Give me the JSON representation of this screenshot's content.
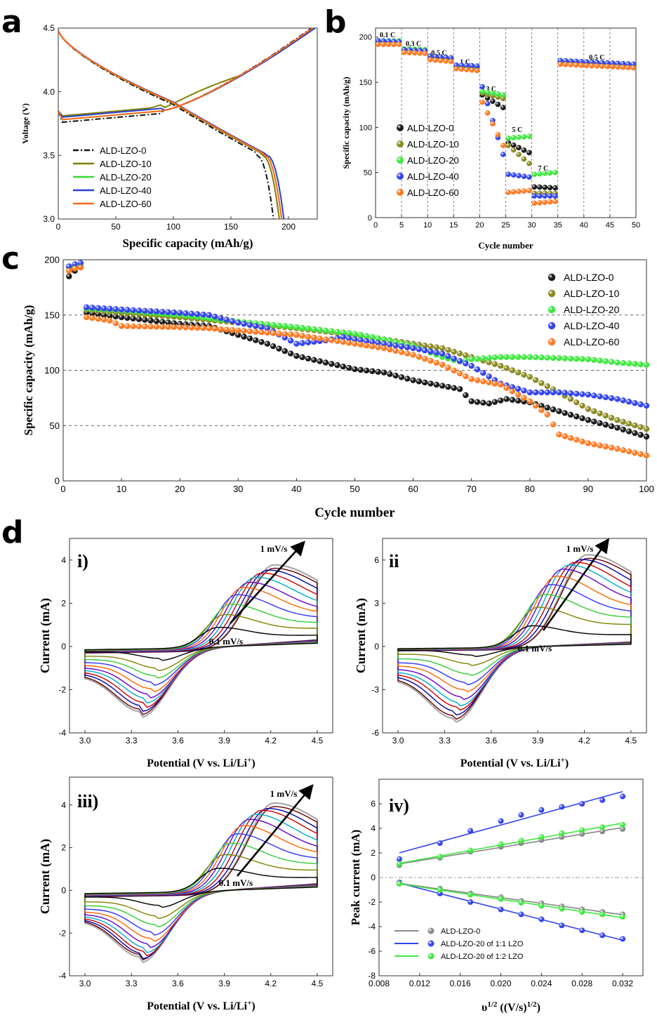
{
  "panel_labels": [
    "a",
    "b",
    "c",
    "d"
  ],
  "colors": {
    "ALD-LZO-0": "#111111",
    "ALD-LZO-10": "#808000",
    "ALD-LZO-20": "#33dd33",
    "ALD-LZO-40": "#2a3fd6",
    "ALD-LZO-60": "#ff6a1a",
    "dots": {
      "ALD-LZO-0": "#1a1a1a",
      "ALD-LZO-10": "#8a8a22",
      "ALD-LZO-20": "#3ee83e",
      "ALD-LZO-40": "#3344ee",
      "ALD-LZO-60": "#ff7a22"
    },
    "cv": [
      "#000000",
      "#808000",
      "#33cc33",
      "#3333ff",
      "#ff6600",
      "#6600cc",
      "#00aacc",
      "#cc0000",
      "#0000aa",
      "#660000",
      "#aaaaaa"
    ]
  },
  "chart_data": [
    {
      "id": "a",
      "type": "line",
      "xlabel": "Specific capacity (mAh/g)",
      "ylabel": "Voltage (V)",
      "xlim": [
        0,
        225
      ],
      "ylim": [
        3.0,
        4.5
      ],
      "xticks": [
        "0",
        "50",
        "100",
        "150",
        "200"
      ],
      "yticks": [
        "3.0",
        "3.5",
        "4.0",
        "4.5"
      ],
      "legend": [
        "ALD-LZO-0",
        "ALD-LZO-10",
        "ALD-LZO-20",
        "ALD-LZO-40",
        "ALD-LZO-60"
      ],
      "legend_position": "lower-left",
      "charge_end_capacity": [
        220,
        222,
        223,
        223,
        221
      ],
      "discharge_end_capacity": [
        187,
        192,
        194,
        196,
        194
      ]
    },
    {
      "id": "b",
      "type": "scatter",
      "xlabel": "Cycle number",
      "ylabel": "Specific capacity (mAh/g)",
      "xlim": [
        0,
        50
      ],
      "ylim": [
        0,
        210
      ],
      "xticks": [
        "0",
        "5",
        "10",
        "15",
        "20",
        "25",
        "30",
        "35",
        "40",
        "45",
        "50"
      ],
      "yticks": [
        "0",
        "50",
        "100",
        "150",
        "200"
      ],
      "rate_labels": [
        {
          "text": "0.1 C",
          "x": 2.3,
          "y": 200
        },
        {
          "text": "0.3 C",
          "x": 7.3,
          "y": 190
        },
        {
          "text": "0.5 C",
          "x": 12.2,
          "y": 180
        },
        {
          "text": "1 C",
          "x": 17.2,
          "y": 170
        },
        {
          "text": "3 C",
          "x": 22.2,
          "y": 140
        },
        {
          "text": "5 C",
          "x": 27.2,
          "y": 95
        },
        {
          "text": "7 C",
          "x": 32.2,
          "y": 52
        },
        {
          "text": "0.5 C",
          "x": 42.5,
          "y": 175
        }
      ],
      "legend": [
        "ALD-LZO-0",
        "ALD-LZO-10",
        "ALD-LZO-20",
        "ALD-LZO-40",
        "ALD-LZO-60"
      ],
      "legend_position": "lower-left",
      "series": [
        {
          "name": "ALD-LZO-0",
          "segments": [
            [
              195,
              195
            ],
            [
              186,
              185
            ],
            [
              178,
              176
            ],
            [
              167,
              166
            ],
            [
              136,
              122
            ],
            [
              83,
              72
            ],
            [
              34,
              33
            ],
            [
              173,
              169
            ]
          ]
        },
        {
          "name": "ALD-LZO-10",
          "segments": [
            [
              195,
              195
            ],
            [
              187,
              186
            ],
            [
              179,
              177
            ],
            [
              168,
              167
            ],
            [
              138,
              132
            ],
            [
              80,
              60
            ],
            [
              27,
              27
            ],
            [
              173,
              169
            ]
          ]
        },
        {
          "name": "ALD-LZO-20",
          "segments": [
            [
              196,
              196
            ],
            [
              187,
              186
            ],
            [
              179,
              177
            ],
            [
              168,
              167
            ],
            [
              140,
              136
            ],
            [
              88,
              90
            ],
            [
              48,
              50
            ],
            [
              174,
              170
            ]
          ]
        },
        {
          "name": "ALD-LZO-40",
          "segments": [
            [
              196,
              195
            ],
            [
              186,
              185
            ],
            [
              179,
              177
            ],
            [
              169,
              168
            ],
            [
              145,
              70
            ],
            [
              48,
              45
            ],
            [
              24,
              24
            ],
            [
              174,
              170
            ]
          ]
        },
        {
          "name": "ALD-LZO-60",
          "segments": [
            [
              192,
              192
            ],
            [
              183,
              182
            ],
            [
              175,
              173
            ],
            [
              165,
              163
            ],
            [
              128,
              80
            ],
            [
              28,
              30
            ],
            [
              16,
              18
            ],
            [
              170,
              166
            ]
          ]
        }
      ]
    },
    {
      "id": "c",
      "type": "scatter",
      "xlabel": "Cycle number",
      "ylabel": "Specific capacity (mAh/g)",
      "xlim": [
        0,
        100
      ],
      "ylim": [
        0,
        200
      ],
      "xticks": [
        "0",
        "10",
        "20",
        "30",
        "40",
        "50",
        "60",
        "70",
        "80",
        "90",
        "100"
      ],
      "yticks": [
        "0",
        "50",
        "100",
        "150",
        "200"
      ],
      "reference_lines": [
        50,
        100,
        150
      ],
      "legend": [
        "ALD-LZO-0",
        "ALD-LZO-10",
        "ALD-LZO-20",
        "ALD-LZO-40",
        "ALD-LZO-60"
      ],
      "legend_position": "top-right",
      "series": [
        {
          "name": "ALD-LZO-0",
          "points": [
            [
              1,
              185
            ],
            [
              2,
              190
            ],
            [
              3,
              193
            ],
            [
              4,
              152
            ],
            [
              10,
              148
            ],
            [
              20,
              142
            ],
            [
              25,
              140
            ],
            [
              30,
              132
            ],
            [
              35,
              124
            ],
            [
              40,
              113
            ],
            [
              45,
              107
            ],
            [
              50,
              101
            ],
            [
              55,
              98
            ],
            [
              60,
              91
            ],
            [
              65,
              86
            ],
            [
              68,
              83
            ],
            [
              70,
              72
            ],
            [
              73,
              70
            ],
            [
              76,
              74
            ],
            [
              80,
              71
            ],
            [
              85,
              63
            ],
            [
              90,
              55
            ],
            [
              95,
              48
            ],
            [
              100,
              40
            ]
          ]
        },
        {
          "name": "ALD-LZO-10",
          "points": [
            [
              1,
              192
            ],
            [
              2,
              193
            ],
            [
              3,
              194
            ],
            [
              4,
              155
            ],
            [
              10,
              152
            ],
            [
              20,
              148
            ],
            [
              30,
              143
            ],
            [
              40,
              138
            ],
            [
              50,
              132
            ],
            [
              55,
              128
            ],
            [
              60,
              124
            ],
            [
              65,
              120
            ],
            [
              70,
              112
            ],
            [
              75,
              104
            ],
            [
              80,
              94
            ],
            [
              85,
              80
            ],
            [
              90,
              65
            ],
            [
              95,
              55
            ],
            [
              100,
              47
            ]
          ]
        },
        {
          "name": "ALD-LZO-20",
          "points": [
            [
              1,
              193
            ],
            [
              2,
              195
            ],
            [
              3,
              196
            ],
            [
              4,
              156
            ],
            [
              10,
              154
            ],
            [
              20,
              150
            ],
            [
              30,
              144
            ],
            [
              40,
              139
            ],
            [
              50,
              133
            ],
            [
              55,
              128
            ],
            [
              60,
              122
            ],
            [
              65,
              112
            ],
            [
              68,
              108
            ],
            [
              70,
              110
            ],
            [
              75,
              112
            ],
            [
              80,
              112
            ],
            [
              85,
              111
            ],
            [
              90,
              110
            ],
            [
              95,
              107
            ],
            [
              100,
              105
            ]
          ]
        },
        {
          "name": "ALD-LZO-40",
          "points": [
            [
              1,
              194
            ],
            [
              2,
              196
            ],
            [
              3,
              197
            ],
            [
              4,
              157
            ],
            [
              10,
              155
            ],
            [
              20,
              152
            ],
            [
              25,
              150
            ],
            [
              30,
              143
            ],
            [
              35,
              138
            ],
            [
              40,
              124
            ],
            [
              45,
              127
            ],
            [
              48,
              130
            ],
            [
              50,
              128
            ],
            [
              55,
              124
            ],
            [
              60,
              120
            ],
            [
              65,
              115
            ],
            [
              70,
              104
            ],
            [
              75,
              88
            ],
            [
              80,
              80
            ],
            [
              85,
              80
            ],
            [
              90,
              78
            ],
            [
              95,
              74
            ],
            [
              100,
              68
            ]
          ]
        },
        {
          "name": "ALD-LZO-60",
          "points": [
            [
              1,
              190
            ],
            [
              2,
              192
            ],
            [
              3,
              193
            ],
            [
              4,
              148
            ],
            [
              8,
              145
            ],
            [
              10,
              140
            ],
            [
              20,
              139
            ],
            [
              25,
              138
            ],
            [
              30,
              136
            ],
            [
              40,
              132
            ],
            [
              50,
              124
            ],
            [
              55,
              120
            ],
            [
              60,
              114
            ],
            [
              65,
              105
            ],
            [
              70,
              92
            ],
            [
              75,
              87
            ],
            [
              80,
              72
            ],
            [
              83,
              60
            ],
            [
              85,
              42
            ],
            [
              90,
              34
            ],
            [
              95,
              29
            ],
            [
              100,
              23
            ]
          ]
        }
      ]
    },
    {
      "id": "d-i",
      "type": "line",
      "tag": "i)",
      "xlabel": "Potential (V vs. Li/Li",
      "xlabel_sup": "+",
      "xlabel_close": ")",
      "ylabel": "Current (mA)",
      "xlim": [
        2.9,
        4.6
      ],
      "ylim": [
        -4,
        5
      ],
      "xticks": [
        "3.0",
        "3.3",
        "3.6",
        "3.9",
        "4.2",
        "4.5"
      ],
      "yticks": [
        "-4",
        "-2",
        "0",
        "2",
        "4"
      ],
      "scan_rates": [
        0.1,
        0.2,
        0.3,
        0.4,
        0.5,
        0.6,
        0.7,
        0.8,
        0.9,
        1.0
      ],
      "ox_peak": [
        0.95,
        1.55,
        2.05,
        2.5,
        2.85,
        3.1,
        3.35,
        3.55,
        3.7,
        3.8
      ],
      "red_peak": [
        -0.55,
        -1.0,
        -1.35,
        -1.65,
        -1.95,
        -2.2,
        -2.4,
        -2.6,
        -2.75,
        -2.9
      ],
      "annotations": [
        {
          "text": "1 mV/s"
        },
        {
          "text": "0.1 mV/s"
        }
      ]
    },
    {
      "id": "d-ii",
      "type": "line",
      "tag": "ii",
      "xlabel": "Potential (V vs. Li/Li",
      "xlabel_sup": "+",
      "xlabel_close": ")",
      "ylabel": "Current (mA)",
      "xlim": [
        2.9,
        4.6
      ],
      "ylim": [
        -6,
        7.5
      ],
      "xticks": [
        "3.0",
        "3.3",
        "3.6",
        "3.9",
        "4.2",
        "4.5"
      ],
      "yticks": [
        "-6",
        "-3",
        "0",
        "3",
        "6"
      ],
      "scan_rates": [
        0.1,
        0.2,
        0.3,
        0.4,
        0.5,
        0.6,
        0.7,
        0.8,
        0.9,
        1.0
      ],
      "ox_peak": [
        1.5,
        2.8,
        3.7,
        4.4,
        5.0,
        5.5,
        5.8,
        6.0,
        6.2,
        6.3
      ],
      "red_peak": [
        -0.6,
        -1.2,
        -1.9,
        -2.5,
        -3.0,
        -3.5,
        -3.9,
        -4.2,
        -4.5,
        -4.8
      ],
      "annotations": [
        {
          "text": "1 mV/s"
        },
        {
          "text": "0.1 mV/s"
        }
      ]
    },
    {
      "id": "d-iii",
      "type": "line",
      "tag": "iii)",
      "xlabel": "Potential (V vs. Li/Li",
      "xlabel_sup": "+",
      "xlabel_close": ")",
      "ylabel": "Current (mA)",
      "xlim": [
        2.9,
        4.6
      ],
      "ylim": [
        -4,
        5.3
      ],
      "xticks": [
        "3.0",
        "3.3",
        "3.6",
        "3.9",
        "4.2",
        "4.5"
      ],
      "yticks": [
        "-4",
        "-2",
        "0",
        "2",
        "4"
      ],
      "scan_rates": [
        0.1,
        0.2,
        0.3,
        0.4,
        0.5,
        0.6,
        0.7,
        0.8,
        0.9,
        1.0
      ],
      "ox_peak": [
        1.1,
        1.75,
        2.3,
        2.75,
        3.15,
        3.45,
        3.7,
        3.9,
        4.0,
        4.1
      ],
      "red_peak": [
        -0.7,
        -1.2,
        -1.6,
        -1.95,
        -2.25,
        -2.5,
        -2.7,
        -2.85,
        -2.95,
        -3.0
      ],
      "annotations": [
        {
          "text": "1 mV/s"
        },
        {
          "text": "0.1 mV/s"
        }
      ]
    },
    {
      "id": "d-iv",
      "type": "scatter",
      "tag": "iv)",
      "xlabel": "υ",
      "xlabel_sup": "1/2",
      "xlabel_tail": " ((V/s)",
      "xlabel_tail_sup": "1/2",
      "xlabel_close": ")",
      "ylabel": "Peak current (mA)",
      "xlim": [
        0.008,
        0.034
      ],
      "ylim": [
        -8,
        8
      ],
      "xticks": [
        "0.008",
        "0.012",
        "0.016",
        "0.020",
        "0.024",
        "0.028",
        "0.032"
      ],
      "yticks": [
        "-8",
        "-6",
        "-4",
        "-2",
        "0",
        "2",
        "4",
        "6"
      ],
      "legend": [
        "ALD-LZO-0",
        "ALD-LZO-20 of 1:1 LZO",
        "ALD-LZO-20 of 1:2 LZO"
      ],
      "legend_position": "lower-left",
      "x": [
        0.01,
        0.014,
        0.017,
        0.02,
        0.022,
        0.024,
        0.026,
        0.028,
        0.03,
        0.032
      ],
      "series": [
        {
          "name": "ALD-LZO-0",
          "color": "#888888",
          "ox": [
            1.0,
            1.6,
            2.1,
            2.5,
            2.8,
            3.05,
            3.3,
            3.55,
            3.75,
            3.95
          ],
          "red": [
            -0.5,
            -0.9,
            -1.3,
            -1.6,
            -1.9,
            -2.1,
            -2.35,
            -2.6,
            -2.8,
            -3.0
          ]
        },
        {
          "name": "ALD-LZO-20 of 1:1 LZO",
          "color": "#3344ee",
          "ox": [
            1.5,
            2.8,
            3.8,
            4.6,
            5.1,
            5.5,
            5.75,
            6.0,
            6.3,
            6.6
          ],
          "red": [
            -0.4,
            -1.3,
            -2.0,
            -2.6,
            -3.0,
            -3.4,
            -3.9,
            -4.3,
            -4.7,
            -5.0
          ]
        },
        {
          "name": "ALD-LZO-20 of 1:2 LZO",
          "color": "#3ee83e",
          "ox": [
            1.1,
            1.7,
            2.2,
            2.7,
            3.0,
            3.3,
            3.6,
            3.85,
            4.1,
            4.3
          ],
          "red": [
            -0.5,
            -1.0,
            -1.4,
            -1.75,
            -2.05,
            -2.3,
            -2.55,
            -2.8,
            -3.0,
            -3.2
          ]
        }
      ]
    }
  ]
}
